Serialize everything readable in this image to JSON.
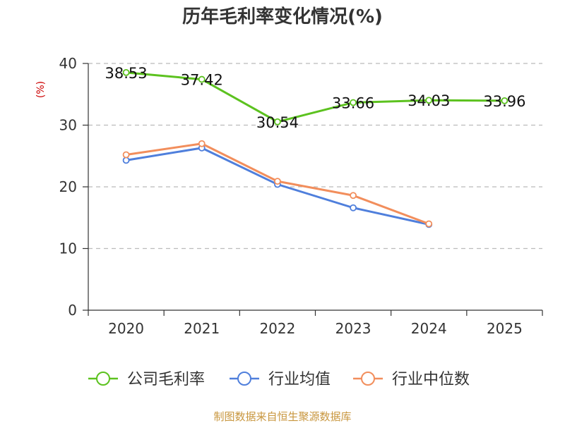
{
  "chart_data": {
    "type": "line",
    "title": "历年毛利率变化情况(%)",
    "ylabel": "(%)",
    "xlabel": "",
    "categories": [
      "2020",
      "2021",
      "2022",
      "2023",
      "2024",
      "2025"
    ],
    "ylim": [
      0,
      40
    ],
    "yticks": [
      0,
      10,
      20,
      30,
      40
    ],
    "grid": true,
    "legend_position": "bottom",
    "series": [
      {
        "name": "公司毛利率",
        "color": "#5cc21f",
        "values": [
          38.53,
          37.42,
          30.54,
          33.66,
          34.03,
          33.96
        ],
        "show_labels": true
      },
      {
        "name": "行业均值",
        "color": "#4f7fdc",
        "values": [
          24.3,
          26.3,
          20.4,
          16.6,
          13.9,
          null
        ],
        "show_labels": false
      },
      {
        "name": "行业中位数",
        "color": "#f28e5c",
        "values": [
          25.2,
          27.0,
          20.9,
          18.6,
          14.0,
          null
        ],
        "show_labels": false
      }
    ],
    "data_labels": [
      "38.53",
      "37.42",
      "30.54",
      "33.66",
      "34.03",
      "33.96"
    ]
  },
  "source_text": "制图数据来自恒生聚源数据库"
}
